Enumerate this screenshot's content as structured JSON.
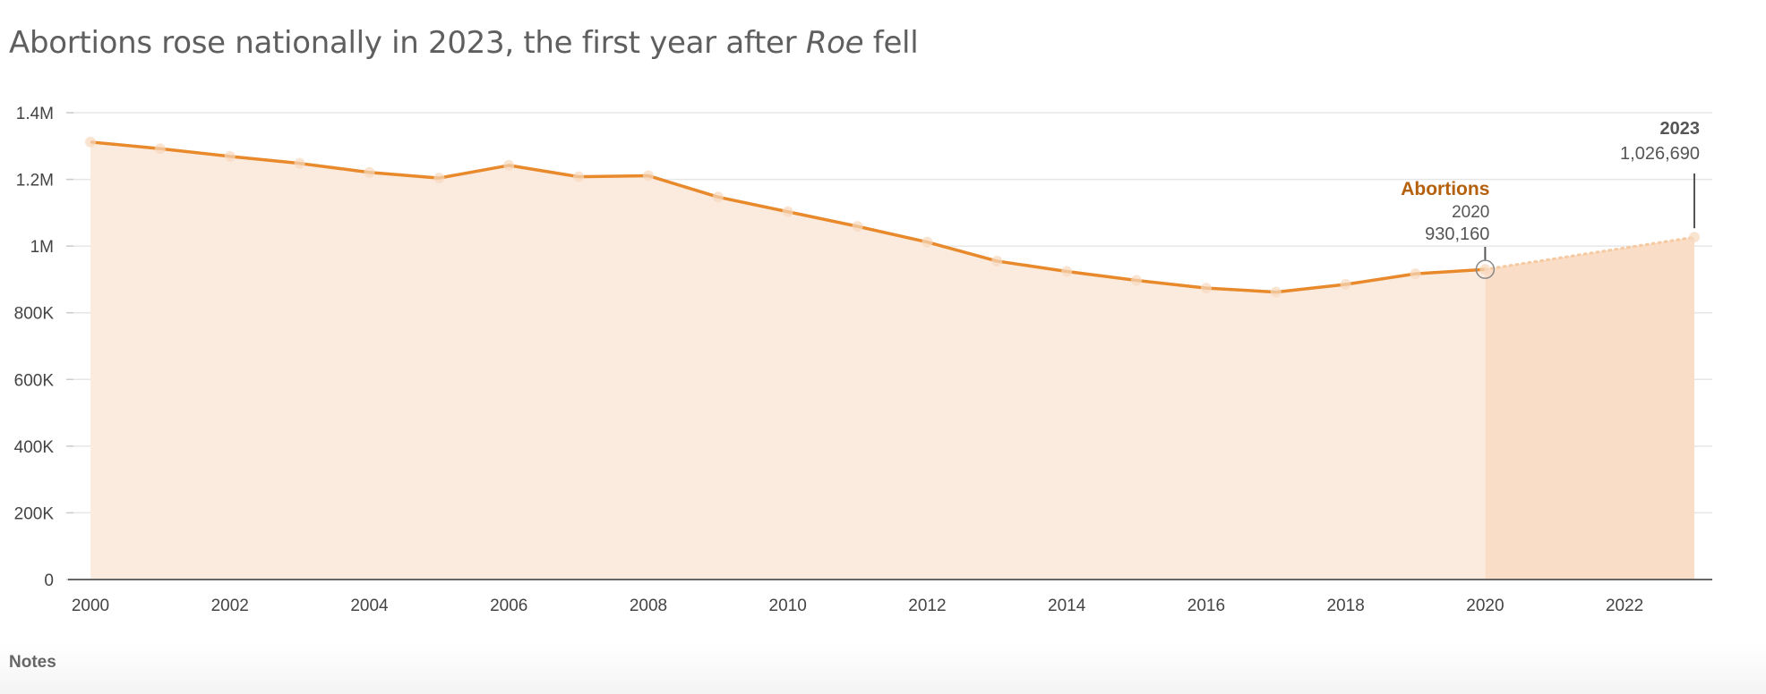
{
  "title": {
    "before": "Abortions rose nationally in 2023, the first year after ",
    "italic": "Roe",
    "after": " fell"
  },
  "notes_label": "Notes",
  "colors": {
    "line": "#e8892b",
    "area": "#fbebdf",
    "area_projected": "#f9ddc6",
    "series_label": "#b5600c",
    "text": "#5f5f5f"
  },
  "chart_data": {
    "type": "area",
    "title": "Abortions rose nationally in 2023, the first year after Roe fell",
    "xlabel": "",
    "ylabel": "",
    "x": [
      2000,
      2001,
      2002,
      2003,
      2004,
      2005,
      2006,
      2007,
      2008,
      2009,
      2010,
      2011,
      2012,
      2013,
      2014,
      2015,
      2016,
      2017,
      2018,
      2019,
      2020,
      2021,
      2022,
      2023
    ],
    "series": [
      {
        "name": "Abortions",
        "values": [
          1312000,
          1292000,
          1269000,
          1248000,
          1221000,
          1204000,
          1242000,
          1208000,
          1211000,
          1147000,
          1103000,
          1059000,
          1012000,
          955000,
          924000,
          897000,
          874000,
          862000,
          885000,
          917000,
          930160,
          null,
          null,
          1026690
        ]
      }
    ],
    "projected_segment": {
      "from": 2020,
      "to": 2023,
      "style": "dotted"
    },
    "xlim": [
      2000,
      2023
    ],
    "ylim": [
      0,
      1400000
    ],
    "x_ticks": [
      "2000",
      "2002",
      "2004",
      "2006",
      "2008",
      "2010",
      "2012",
      "2014",
      "2016",
      "2018",
      "2020",
      "2022"
    ],
    "y_ticks": [
      {
        "v": 0,
        "label": "0"
      },
      {
        "v": 200000,
        "label": "200K"
      },
      {
        "v": 400000,
        "label": "400K"
      },
      {
        "v": 600000,
        "label": "600K"
      },
      {
        "v": 800000,
        "label": "800K"
      },
      {
        "v": 1000000,
        "label": "1M"
      },
      {
        "v": 1200000,
        "label": "1.2M"
      },
      {
        "v": 1400000,
        "label": "1.4M"
      }
    ],
    "grid": true,
    "annotations": [
      {
        "year": "2023",
        "value": "1,026,690"
      },
      {
        "series": "Abortions",
        "year": "2020",
        "value": "930,160"
      }
    ]
  }
}
